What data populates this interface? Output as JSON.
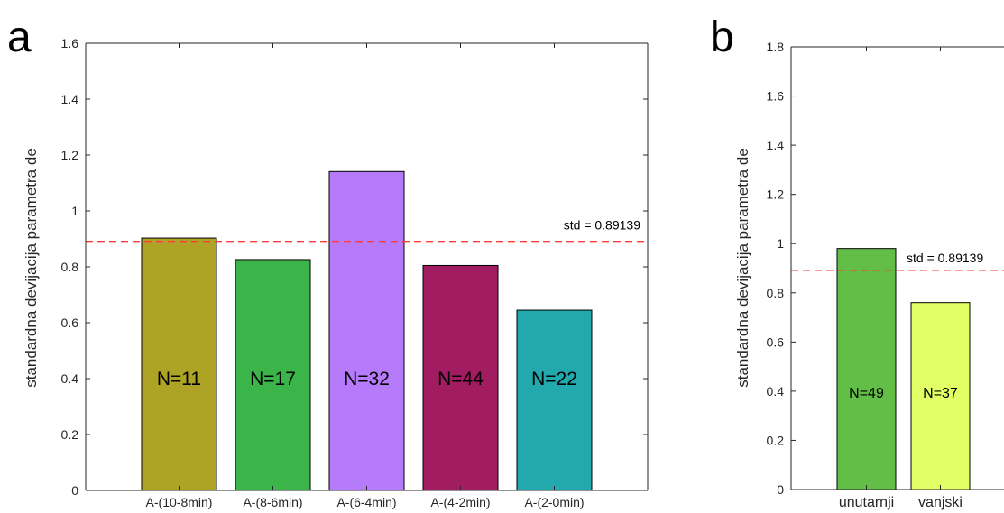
{
  "chart_data": [
    {
      "type": "bar",
      "panel_label": "a",
      "categories": [
        "A-(10-8min)",
        "A-(8-6min)",
        "A-(6-4min)",
        "A-(4-2min)",
        "A-(2-0min)"
      ],
      "values": [
        0.903,
        0.826,
        1.141,
        0.805,
        0.645
      ],
      "bar_labels": [
        "N=11",
        "N=17",
        "N=32",
        "N=44",
        "N=22"
      ],
      "colors": [
        "#ADA324",
        "#3BB54A",
        "#B57BFA",
        "#A11C60",
        "#22A8AD"
      ],
      "ylabel": "standardna devijacija parametra de",
      "xlabel": "",
      "ylim": [
        0,
        1.6
      ],
      "yticks": [
        0,
        0.2,
        0.4,
        0.6,
        0.8,
        1,
        1.2,
        1.4,
        1.6
      ],
      "ytick_labels": [
        "0",
        "0.2",
        "0.4",
        "0.6",
        "0.8",
        "1",
        "1.2",
        "1.4",
        "1.6"
      ],
      "reference_line": {
        "value": 0.89139,
        "label": "std = 0.89139",
        "color": "#FF3B3B"
      }
    },
    {
      "type": "bar",
      "panel_label": "b",
      "categories": [
        "unutarnji",
        "vanjski"
      ],
      "values": [
        0.98,
        0.76
      ],
      "bar_labels": [
        "N=49",
        "N=37"
      ],
      "colors": [
        "#63BE48",
        "#E2FF66"
      ],
      "ylabel": "standardna devijacija parametra de",
      "xlabel": "",
      "ylim": [
        0,
        1.8
      ],
      "yticks": [
        0,
        0.2,
        0.4,
        0.6,
        0.8,
        1,
        1.2,
        1.4,
        1.6,
        1.8
      ],
      "ytick_labels": [
        "0",
        "0.2",
        "0.4",
        "0.6",
        "0.8",
        "1",
        "1.2",
        "1.4",
        "1.6",
        "1.8"
      ],
      "reference_line": {
        "value": 0.89139,
        "label": "std = 0.89139",
        "color": "#FF3B3B"
      }
    }
  ]
}
